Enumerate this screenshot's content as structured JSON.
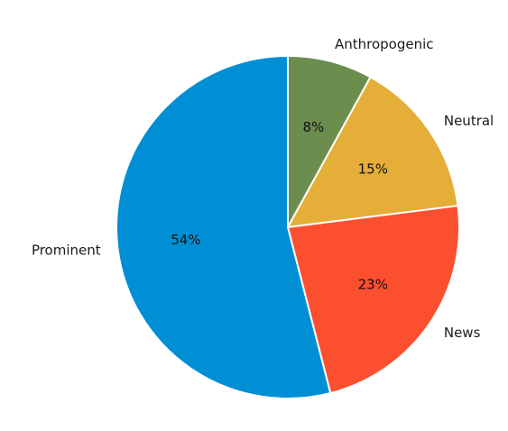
{
  "chart_data": {
    "type": "pie",
    "title": "",
    "start_angle_deg": 90,
    "direction": "clockwise",
    "slices": [
      {
        "label": "Anthropogenic",
        "value": 8,
        "pct_label": "8%",
        "color": "#6b8e4e"
      },
      {
        "label": "Neutral",
        "value": 15,
        "pct_label": "15%",
        "color": "#e5ae38"
      },
      {
        "label": "News",
        "value": 23,
        "pct_label": "23%",
        "color": "#fc4f30"
      },
      {
        "label": "Prominent",
        "value": 54,
        "pct_label": "54%",
        "color": "#008fd5"
      }
    ]
  }
}
